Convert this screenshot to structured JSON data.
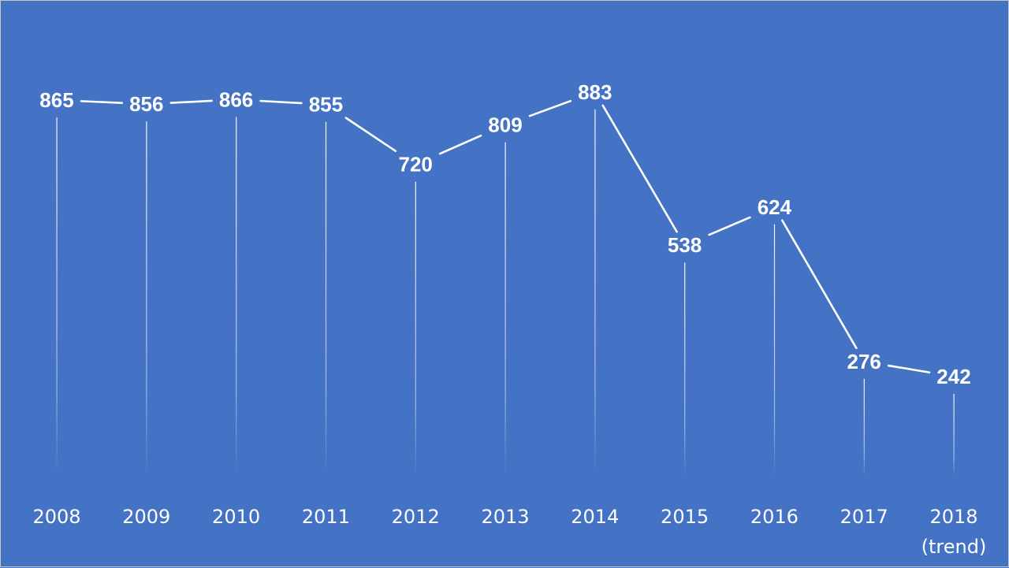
{
  "chart_data": {
    "type": "line",
    "title": "",
    "xlabel": "",
    "ylabel": "",
    "categories": [
      "2008",
      "2009",
      "2010",
      "2011",
      "2012",
      "2013",
      "2014",
      "2015",
      "2016",
      "2017",
      "2018"
    ],
    "category_sublabels": [
      "",
      "",
      "",
      "",
      "",
      "",
      "",
      "",
      "",
      "",
      "(trend)"
    ],
    "values": [
      865,
      856,
      866,
      855,
      720,
      809,
      883,
      538,
      624,
      276,
      242
    ],
    "ylim": [
      0,
      900
    ],
    "grid": false,
    "legend": "none",
    "drop_lines": true,
    "colors": {
      "background": "#4472C4",
      "line": "#FFFFFF",
      "text": "#FFFFFF"
    }
  }
}
